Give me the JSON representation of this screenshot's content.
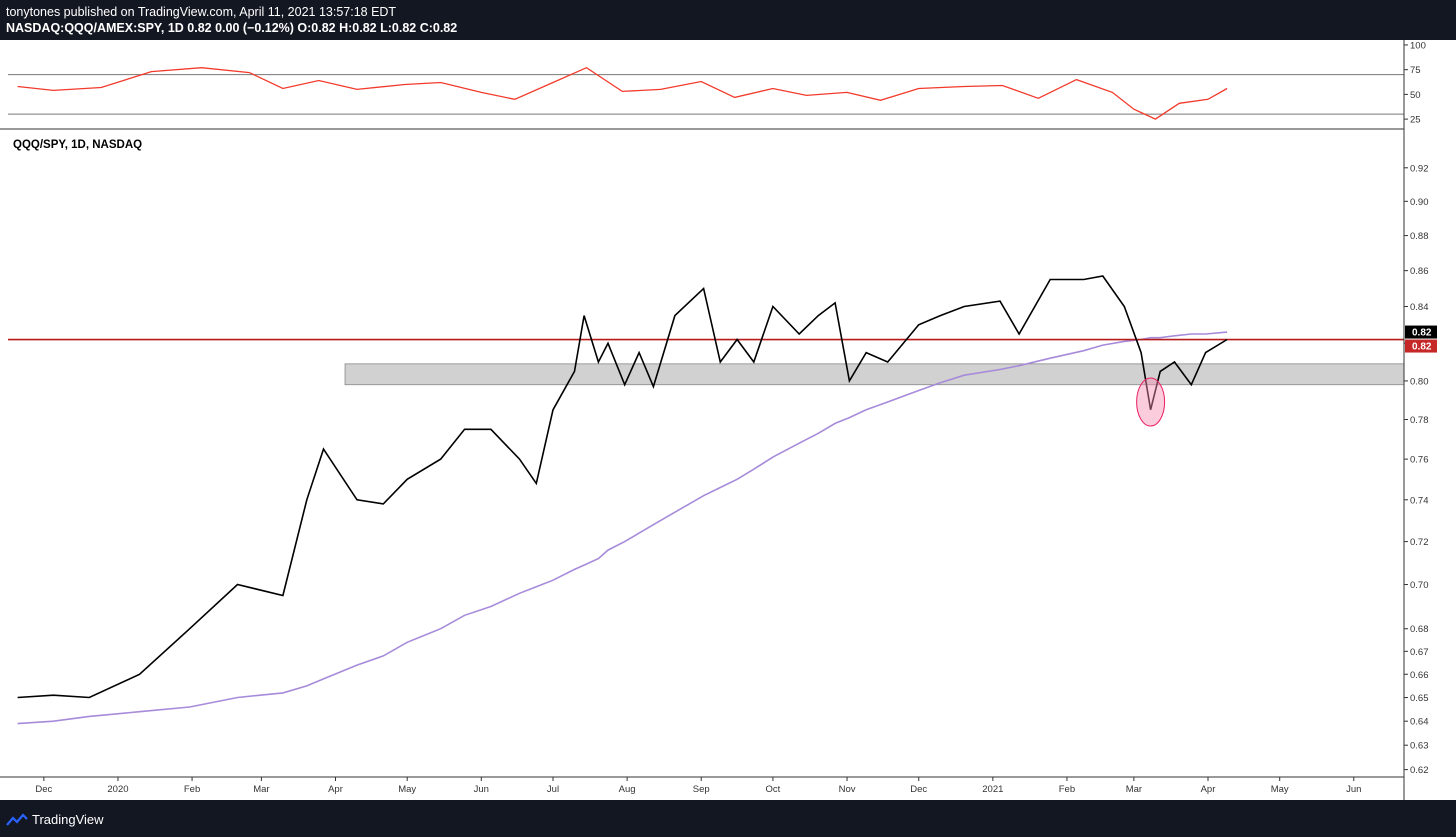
{
  "header": {
    "publish_line": "tonytones published on TradingView.com, April 11, 2021 13:57:18 EDT",
    "symbol_line": "NASDAQ:QQQ/AMEX:SPY, 1D  0.82  0.00 (−0.12%)  O:0.82  H:0.82  L:0.82  C:0.82"
  },
  "footer": {
    "brand": "TradingView",
    "logo_icon": "tradingview-logo-icon"
  },
  "colors": {
    "price": "#000000",
    "ma": "#a78bda",
    "rsi": "#f23a2b",
    "resistance": "#b71c1c",
    "zone": "#bdbdbd",
    "highlight": "#f48fb1",
    "badge_black": "#000000",
    "badge_red": "#c62828"
  },
  "chart_data": [
    {
      "type": "line",
      "panel": "rsi",
      "x": [
        "2019-11-20",
        "2019-12-05",
        "2019-12-25",
        "2020-01-15",
        "2020-02-05",
        "2020-02-25",
        "2020-03-10",
        "2020-03-25",
        "2020-04-10",
        "2020-04-30",
        "2020-05-15",
        "2020-06-01",
        "2020-06-15",
        "2020-07-01",
        "2020-07-15",
        "2020-07-30",
        "2020-08-15",
        "2020-09-01",
        "2020-09-15",
        "2020-10-01",
        "2020-10-15",
        "2020-11-01",
        "2020-11-15",
        "2020-12-01",
        "2020-12-20",
        "2021-01-05",
        "2021-01-20",
        "2021-02-05",
        "2021-02-20",
        "2021-03-01",
        "2021-03-10",
        "2021-03-20",
        "2021-04-01",
        "2021-04-09"
      ],
      "series": [
        {
          "values": [
            58,
            54,
            57,
            73,
            77,
            72,
            56,
            64,
            55,
            60,
            62,
            52,
            45,
            62,
            77,
            53,
            55,
            63,
            47,
            56,
            49,
            52,
            44,
            56,
            58,
            59,
            46,
            65,
            52,
            35,
            25,
            41,
            45,
            56
          ]
        }
      ],
      "ylim": [
        15,
        105
      ],
      "y_ticks": [
        "100",
        "75",
        "50",
        "25"
      ],
      "hlines": [
        70,
        30
      ]
    },
    {
      "type": "line",
      "panel": "main",
      "title": "QQQ/SPY, 1D, NASDAQ",
      "x": [
        "2019-11-20",
        "2019-12-05",
        "2019-12-20",
        "2020-01-10",
        "2020-01-31",
        "2020-02-20",
        "2020-03-10",
        "2020-03-20",
        "2020-03-27",
        "2020-04-10",
        "2020-04-21",
        "2020-05-01",
        "2020-05-15",
        "2020-05-25",
        "2020-06-05",
        "2020-06-17",
        "2020-06-24",
        "2020-07-01",
        "2020-07-10",
        "2020-07-14",
        "2020-07-20",
        "2020-07-24",
        "2020-07-31",
        "2020-08-06",
        "2020-08-12",
        "2020-08-21",
        "2020-09-02",
        "2020-09-09",
        "2020-09-16",
        "2020-09-23",
        "2020-10-01",
        "2020-10-12",
        "2020-10-20",
        "2020-10-27",
        "2020-11-02",
        "2020-11-09",
        "2020-11-18",
        "2020-12-01",
        "2020-12-10",
        "2020-12-20",
        "2021-01-04",
        "2021-01-12",
        "2021-01-25",
        "2021-02-08",
        "2021-02-16",
        "2021-02-25",
        "2021-03-04",
        "2021-03-08",
        "2021-03-12",
        "2021-03-18",
        "2021-03-25",
        "2021-03-31",
        "2021-04-09"
      ],
      "series": [
        {
          "name": "price",
          "values": [
            0.65,
            0.651,
            0.65,
            0.66,
            0.68,
            0.7,
            0.695,
            0.74,
            0.765,
            0.74,
            0.738,
            0.75,
            0.76,
            0.775,
            0.775,
            0.76,
            0.748,
            0.785,
            0.805,
            0.835,
            0.81,
            0.82,
            0.798,
            0.815,
            0.797,
            0.835,
            0.85,
            0.81,
            0.822,
            0.81,
            0.84,
            0.825,
            0.835,
            0.842,
            0.8,
            0.815,
            0.81,
            0.83,
            0.835,
            0.84,
            0.843,
            0.825,
            0.855,
            0.855,
            0.857,
            0.84,
            0.815,
            0.785,
            0.805,
            0.81,
            0.798,
            0.815,
            0.822
          ]
        },
        {
          "name": "ma",
          "values": [
            0.639,
            0.64,
            0.642,
            0.644,
            0.646,
            0.65,
            0.652,
            0.655,
            0.658,
            0.664,
            0.668,
            0.674,
            0.68,
            0.686,
            0.69,
            0.696,
            0.699,
            0.702,
            0.707,
            0.709,
            0.712,
            0.716,
            0.72,
            0.724,
            0.728,
            0.734,
            0.742,
            0.746,
            0.75,
            0.755,
            0.761,
            0.768,
            0.773,
            0.778,
            0.781,
            0.785,
            0.789,
            0.795,
            0.799,
            0.803,
            0.806,
            0.808,
            0.812,
            0.816,
            0.819,
            0.821,
            0.822,
            0.823,
            0.823,
            0.824,
            0.825,
            0.825,
            0.826
          ]
        }
      ],
      "ylim": [
        0.617,
        0.94
      ],
      "y_ticks": [
        "0.92",
        "0.90",
        "0.88",
        "0.86",
        "0.84",
        "0.82",
        "0.80",
        "0.78",
        "0.76",
        "0.74",
        "0.72",
        "0.70",
        "0.68",
        "0.67",
        "0.66",
        "0.65",
        "0.64",
        "0.63",
        "0.62"
      ],
      "x_tick_labels": [
        "Dec",
        "2020",
        "Feb",
        "Mar",
        "Apr",
        "May",
        "Jun",
        "Jul",
        "Aug",
        "Sep",
        "Oct",
        "Nov",
        "Dec",
        "2021",
        "Feb",
        "Mar",
        "Apr",
        "May",
        "Jun"
      ],
      "resistance_level": 0.822,
      "support_zone": [
        0.798,
        0.809
      ],
      "highlight_point": {
        "x": "2021-03-08",
        "y": 0.789
      },
      "last_value_labels": [
        "0.82",
        "0.82"
      ]
    }
  ]
}
